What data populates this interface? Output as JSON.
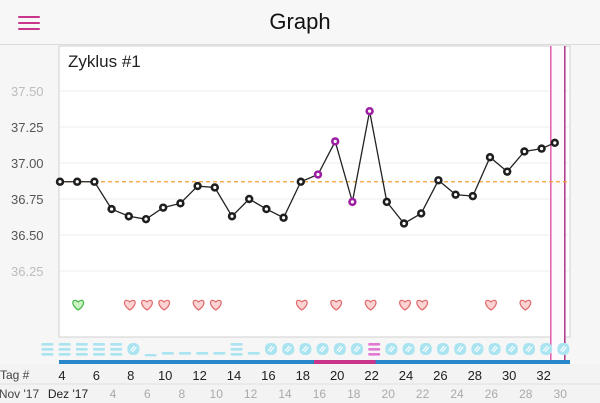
{
  "header": {
    "title": "Graph",
    "menu_icon": "hamburger-menu-icon"
  },
  "colors": {
    "accent": "#c8358a",
    "line": "#222222",
    "point_highlight": "#9c1fa3",
    "coverline": "#f0a030",
    "heart_fill": "#fbd3d3",
    "heart_stroke": "#e06b6b",
    "heart_green_fill": "#c9f4c2",
    "heart_green_stroke": "#46b64a",
    "mucus": "#a9e4f0",
    "mucus_pink": "#e279d2",
    "bottom_band": "#2787c8"
  },
  "chart_data": {
    "type": "line",
    "title": "Zyklus #1",
    "ylim": [
      35.98,
      37.64
    ],
    "yticks": [
      "37.50",
      "37.25",
      "37.00",
      "36.75",
      "36.50",
      "36.25"
    ],
    "coverline": 36.87,
    "series": [
      {
        "x": [
          4,
          5,
          6,
          7,
          8,
          9,
          10,
          11,
          12,
          13,
          14,
          15,
          16,
          17,
          18,
          19,
          20,
          21,
          22,
          23,
          24,
          25,
          26,
          27,
          28,
          29,
          30,
          31,
          32
        ],
        "values": [
          36.87,
          36.87,
          36.87,
          36.68,
          36.63,
          36.61,
          36.69,
          36.72,
          36.84,
          36.83,
          36.63,
          36.75,
          36.68,
          36.62,
          36.87,
          36.92,
          37.15,
          36.73,
          37.36,
          36.73,
          36.58,
          36.65,
          36.88,
          36.78,
          36.77,
          37.04,
          36.94,
          37.08,
          37.1
        ],
        "highlighted": [
          19,
          20,
          21,
          22
        ]
      }
    ],
    "last_point": {
      "x": 33,
      "value": 37.14
    },
    "hearts": [
      {
        "day": 5,
        "color": "green"
      },
      {
        "day": 8,
        "color": "red"
      },
      {
        "day": 9,
        "color": "red"
      },
      {
        "day": 10,
        "color": "red"
      },
      {
        "day": 12,
        "color": "red"
      },
      {
        "day": 13,
        "color": "red"
      },
      {
        "day": 18,
        "color": "red"
      },
      {
        "day": 20,
        "color": "red"
      },
      {
        "day": 22,
        "color": "red"
      },
      {
        "day": 24,
        "color": "red"
      },
      {
        "day": 25,
        "color": "red"
      },
      {
        "day": 29,
        "color": "red"
      },
      {
        "day": 31,
        "color": "red"
      }
    ],
    "mucus": [
      "lines3",
      "lines3",
      "lines3",
      "lines3",
      "lines3",
      "egg",
      "flat",
      "lines1",
      "lines1",
      "lines1",
      "lines1",
      "lines3",
      "lines1",
      "egg",
      "egg",
      "egg",
      "egg",
      "egg",
      "egg",
      "lines3pink",
      "egg",
      "egg",
      "egg",
      "egg",
      "egg",
      "egg",
      "egg",
      "egg",
      "egg",
      "egg",
      "egg"
    ],
    "mucus_start_day": 3,
    "x_row_label": "Tag #",
    "x_ticks": [
      "4",
      "6",
      "8",
      "10",
      "12",
      "14",
      "16",
      "18",
      "20",
      "22",
      "24",
      "26",
      "28",
      "30",
      "32"
    ],
    "date_left_labels": [
      "Nov '17",
      "Dez '17"
    ],
    "date_ticks": [
      "4",
      "6",
      "8",
      "10",
      "12",
      "14",
      "16",
      "18",
      "20",
      "22",
      "24",
      "26",
      "28",
      "30"
    ],
    "today_marker_day": 33
  }
}
